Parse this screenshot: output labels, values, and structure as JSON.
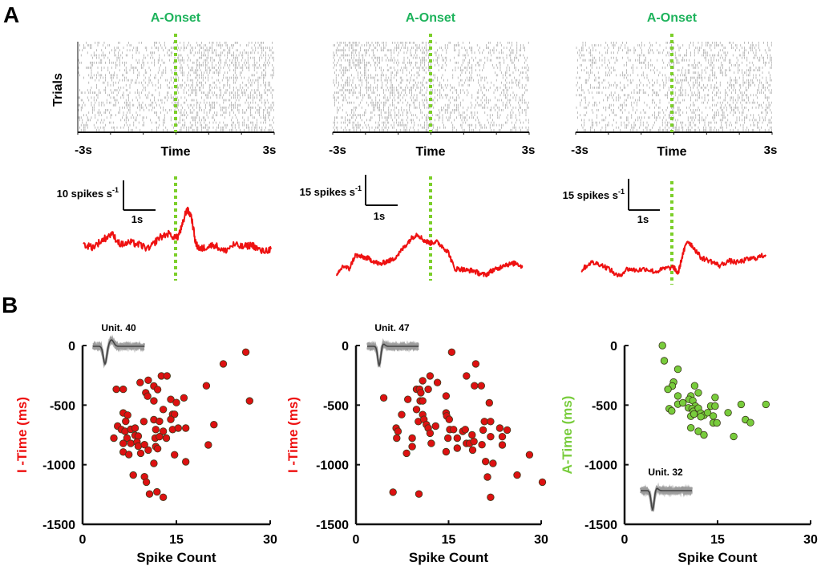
{
  "figure": {
    "panel_a_label": "A",
    "panel_b_label": "B"
  },
  "colors": {
    "onset_label": "#1eb35c",
    "onset_line": "#7ccf2a",
    "trace": "#ee1111",
    "red_dot": "#dd1111",
    "green_dot": "#78cc3c",
    "axis": "#111111",
    "waveform": "#666666"
  },
  "chart_data": [
    {
      "type": "raster",
      "panel": "A",
      "title": "A-Onset",
      "ylabel": "Trials",
      "xlabel": "Time",
      "xtick_labels": [
        "-3s",
        "3s"
      ],
      "xlim": [
        -3,
        3
      ],
      "onset": 0
    },
    {
      "type": "raster",
      "panel": "A",
      "title": "A-Onset",
      "ylabel": "",
      "xlabel": "Time",
      "xtick_labels": [
        "-3s",
        "3s"
      ],
      "xlim": [
        -3,
        3
      ],
      "onset": 0
    },
    {
      "type": "raster",
      "panel": "A",
      "title": "A-Onset",
      "ylabel": "",
      "xlabel": "Time",
      "xtick_labels": [
        "-3s",
        "3s"
      ],
      "xlim": [
        -3,
        3
      ],
      "onset": 0
    },
    {
      "type": "line",
      "panel": "A",
      "scalebar_y_label": "10 spikes s",
      "scalebar_y_sup": "-1",
      "scalebar_x_label": "1s",
      "scalebar_y_value": 10,
      "xlim": [
        -3,
        3
      ],
      "x": [
        -3.0,
        -2.7,
        -2.4,
        -2.1,
        -1.8,
        -1.5,
        -1.2,
        -0.9,
        -0.6,
        -0.3,
        0.0,
        0.15,
        0.3,
        0.45,
        0.6,
        0.75,
        0.9,
        1.2,
        1.5,
        1.8,
        2.1,
        2.4,
        2.7,
        3.0
      ],
      "y": [
        14,
        13,
        16,
        19,
        14,
        15,
        14,
        12,
        17,
        19,
        17,
        22,
        30,
        27,
        14,
        12,
        13,
        14,
        11,
        14,
        13,
        14,
        11,
        12
      ]
    },
    {
      "type": "line",
      "panel": "A",
      "scalebar_y_label": "15 spikes s",
      "scalebar_y_sup": "-1",
      "scalebar_x_label": "1s",
      "scalebar_y_value": 15,
      "xlim": [
        -3,
        3
      ],
      "x": [
        -3.0,
        -2.8,
        -2.6,
        -2.4,
        -2.2,
        -2.0,
        -1.8,
        -1.6,
        -1.4,
        -1.2,
        -1.0,
        -0.8,
        -0.6,
        -0.4,
        -0.2,
        0.0,
        0.2,
        0.4,
        0.6,
        0.8,
        1.0,
        1.2,
        1.4,
        1.6,
        1.8,
        2.0,
        2.2,
        2.4,
        2.6,
        2.8,
        3.0
      ],
      "y": [
        8,
        15,
        13,
        22,
        21,
        20,
        18,
        16,
        18,
        19,
        23,
        28,
        33,
        36,
        32,
        30,
        31,
        28,
        24,
        13,
        13,
        12,
        12,
        10,
        9,
        12,
        13,
        16,
        16,
        17,
        14
      ]
    },
    {
      "type": "line",
      "panel": "A",
      "scalebar_y_label": "15 spikes s",
      "scalebar_y_sup": "-1",
      "scalebar_x_label": "1s",
      "scalebar_y_value": 15,
      "xlim": [
        -3,
        3
      ],
      "x": [
        -3.0,
        -2.7,
        -2.4,
        -2.1,
        -1.8,
        -1.5,
        -1.2,
        -0.9,
        -0.6,
        -0.3,
        0.0,
        0.15,
        0.3,
        0.45,
        0.6,
        0.9,
        1.2,
        1.5,
        1.8,
        2.1,
        2.4,
        2.7,
        3.0
      ],
      "y": [
        12,
        17,
        16,
        13,
        8,
        13,
        12,
        13,
        11,
        13,
        14,
        10,
        22,
        31,
        28,
        20,
        18,
        15,
        18,
        17,
        19,
        20,
        22
      ]
    },
    {
      "type": "scatter",
      "panel": "B",
      "inset_label": "Unit. 40",
      "xlabel": "Spike Count",
      "ylabel": "I -Time (ms)",
      "xlim": [
        0,
        30
      ],
      "ylim": [
        -1500,
        0
      ],
      "xticks": [
        0,
        15,
        30
      ],
      "yticks": [
        0,
        -500,
        -1000,
        -1500
      ],
      "xtick_labels": [
        "0",
        "15",
        "30"
      ],
      "ytick_labels": [
        "0",
        "-500",
        "-1000",
        "-1500"
      ],
      "points": [
        [
          26.1,
          -56
        ],
        [
          22.5,
          -154
        ],
        [
          19.8,
          -338
        ],
        [
          26.7,
          -465
        ],
        [
          21.0,
          -664
        ],
        [
          20.1,
          -834
        ],
        [
          12.6,
          -255
        ],
        [
          13.5,
          -255
        ],
        [
          5.4,
          -367
        ],
        [
          6.5,
          -367
        ],
        [
          9.2,
          -311
        ],
        [
          10.5,
          -291
        ],
        [
          11.4,
          -340
        ],
        [
          12.0,
          -369
        ],
        [
          10.1,
          -396
        ],
        [
          10.4,
          -425
        ],
        [
          11.4,
          -465
        ],
        [
          14.1,
          -452
        ],
        [
          15.0,
          -479
        ],
        [
          16.2,
          -439
        ],
        [
          12.9,
          -537
        ],
        [
          14.4,
          -577
        ],
        [
          14.7,
          -577
        ],
        [
          14.1,
          -620
        ],
        [
          6.5,
          -566
        ],
        [
          7.2,
          -584
        ],
        [
          6.9,
          -636
        ],
        [
          9.8,
          -638
        ],
        [
          11.4,
          -622
        ],
        [
          12.3,
          -636
        ],
        [
          5.6,
          -676
        ],
        [
          6.2,
          -705
        ],
        [
          6.8,
          -720
        ],
        [
          7.7,
          -703
        ],
        [
          8.4,
          -693
        ],
        [
          11.7,
          -705
        ],
        [
          12.9,
          -720
        ],
        [
          14.4,
          -705
        ],
        [
          15.3,
          -693
        ],
        [
          16.5,
          -693
        ],
        [
          5.0,
          -777
        ],
        [
          7.1,
          -777
        ],
        [
          8.4,
          -754
        ],
        [
          8.9,
          -760
        ],
        [
          11.6,
          -777
        ],
        [
          12.3,
          -765
        ],
        [
          13.4,
          -777
        ],
        [
          6.5,
          -821
        ],
        [
          7.7,
          -821
        ],
        [
          8.7,
          -810
        ],
        [
          8.9,
          -844
        ],
        [
          9.9,
          -832
        ],
        [
          10.5,
          -877
        ],
        [
          11.7,
          -848
        ],
        [
          12.0,
          -866
        ],
        [
          6.5,
          -893
        ],
        [
          7.4,
          -915
        ],
        [
          9.3,
          -904
        ],
        [
          14.7,
          -917
        ],
        [
          16.5,
          -975
        ],
        [
          11.4,
          -989
        ],
        [
          8.1,
          -1087
        ],
        [
          9.9,
          -1101
        ],
        [
          10.2,
          -1146
        ],
        [
          10.7,
          -1246
        ],
        [
          11.9,
          -1228
        ],
        [
          12.9,
          -1273
        ]
      ]
    },
    {
      "type": "scatter",
      "panel": "B",
      "inset_label": "Unit. 47",
      "xlabel": "Spike Count",
      "ylabel": "I -Time (ms)",
      "xlim": [
        0,
        30
      ],
      "ylim": [
        -1500,
        0
      ],
      "xticks": [
        0,
        15,
        30
      ],
      "yticks": [
        0,
        -500,
        -1000,
        -1500
      ],
      "xtick_labels": [
        "0",
        "15",
        "30"
      ],
      "ytick_labels": [
        "0",
        "-500",
        "-1000",
        "-1500"
      ],
      "points": [
        [
          15.5,
          -56
        ],
        [
          19.4,
          -154
        ],
        [
          17.9,
          -255
        ],
        [
          19.2,
          -338
        ],
        [
          20.3,
          -338
        ],
        [
          12.0,
          -255
        ],
        [
          10.8,
          -295
        ],
        [
          13.2,
          -311
        ],
        [
          9.8,
          -367
        ],
        [
          10.3,
          -367
        ],
        [
          11.7,
          -367
        ],
        [
          10.5,
          -396
        ],
        [
          4.5,
          -439
        ],
        [
          8.4,
          -452
        ],
        [
          10.4,
          -465
        ],
        [
          10.8,
          -465
        ],
        [
          14.6,
          -423
        ],
        [
          21.6,
          -481
        ],
        [
          9.8,
          -537
        ],
        [
          7.4,
          -580
        ],
        [
          10.8,
          -580
        ],
        [
          14.6,
          -566
        ],
        [
          14.7,
          -591
        ],
        [
          15.1,
          -620
        ],
        [
          10.1,
          -638
        ],
        [
          11.0,
          -620
        ],
        [
          11.4,
          -664
        ],
        [
          11.7,
          -693
        ],
        [
          12.0,
          -736
        ],
        [
          12.9,
          -676
        ],
        [
          20.8,
          -638
        ],
        [
          21.8,
          -638
        ],
        [
          6.5,
          -693
        ],
        [
          6.8,
          -720
        ],
        [
          6.6,
          -777
        ],
        [
          9.1,
          -777
        ],
        [
          9.1,
          -848
        ],
        [
          8.2,
          -904
        ],
        [
          12.2,
          -821
        ],
        [
          15.2,
          -705
        ],
        [
          15.8,
          -705
        ],
        [
          14.9,
          -777
        ],
        [
          16.4,
          -777
        ],
        [
          16.4,
          -861
        ],
        [
          14.6,
          -891
        ],
        [
          17.3,
          -720
        ],
        [
          17.7,
          -705
        ],
        [
          18.8,
          -750
        ],
        [
          17.9,
          -821
        ],
        [
          18.4,
          -821
        ],
        [
          19.1,
          -805
        ],
        [
          18.9,
          -877
        ],
        [
          20.4,
          -832
        ],
        [
          20.6,
          -709
        ],
        [
          21.8,
          -765
        ],
        [
          23.3,
          -693
        ],
        [
          24.5,
          -709
        ],
        [
          23.7,
          -765
        ],
        [
          23.7,
          -834
        ],
        [
          21.0,
          -973
        ],
        [
          22.2,
          -989
        ],
        [
          21.3,
          -1103
        ],
        [
          26.1,
          -1087
        ],
        [
          28.1,
          -917
        ],
        [
          30.2,
          -1146
        ],
        [
          6.0,
          -1230
        ],
        [
          10.2,
          -1246
        ],
        [
          21.8,
          -1273
        ]
      ]
    },
    {
      "type": "scatter",
      "panel": "B",
      "inset_label": "Unit. 32",
      "xlabel": "Spike Count",
      "ylabel": "A-Time (ms)",
      "xlim": [
        0,
        30
      ],
      "ylim": [
        -1500,
        0
      ],
      "xticks": [
        0,
        15,
        30
      ],
      "yticks": [
        0,
        -500,
        -1000,
        -1500
      ],
      "xtick_labels": [
        "0",
        "15",
        "30"
      ],
      "ytick_labels": [
        "0",
        "-500",
        "-1000",
        "-1500"
      ],
      "points": [
        [
          6.1,
          0
        ],
        [
          6.4,
          -128
        ],
        [
          8.6,
          -199
        ],
        [
          7.9,
          -307
        ],
        [
          7.7,
          -340
        ],
        [
          7.0,
          -367
        ],
        [
          11.3,
          -338
        ],
        [
          11.9,
          -396
        ],
        [
          8.6,
          -423
        ],
        [
          10.7,
          -423
        ],
        [
          10.4,
          -452
        ],
        [
          14.6,
          -436
        ],
        [
          8.6,
          -492
        ],
        [
          9.4,
          -481
        ],
        [
          11.0,
          -463
        ],
        [
          11.4,
          -508
        ],
        [
          13.9,
          -508
        ],
        [
          14.6,
          -508
        ],
        [
          18.8,
          -494
        ],
        [
          22.8,
          -494
        ],
        [
          7.2,
          -530
        ],
        [
          7.6,
          -548
        ],
        [
          10.3,
          -523
        ],
        [
          10.9,
          -530
        ],
        [
          11.1,
          -552
        ],
        [
          11.9,
          -526
        ],
        [
          10.7,
          -593
        ],
        [
          11.2,
          -575
        ],
        [
          12.3,
          -568
        ],
        [
          12.8,
          -586
        ],
        [
          13.4,
          -564
        ],
        [
          12.3,
          -597
        ],
        [
          14.3,
          -591
        ],
        [
          16.7,
          -564
        ],
        [
          14.3,
          -649
        ],
        [
          14.9,
          -649
        ],
        [
          19.5,
          -622
        ],
        [
          20.3,
          -647
        ],
        [
          10.7,
          -691
        ],
        [
          11.9,
          -720
        ],
        [
          12.8,
          -750
        ],
        [
          17.6,
          -763
        ]
      ]
    }
  ]
}
